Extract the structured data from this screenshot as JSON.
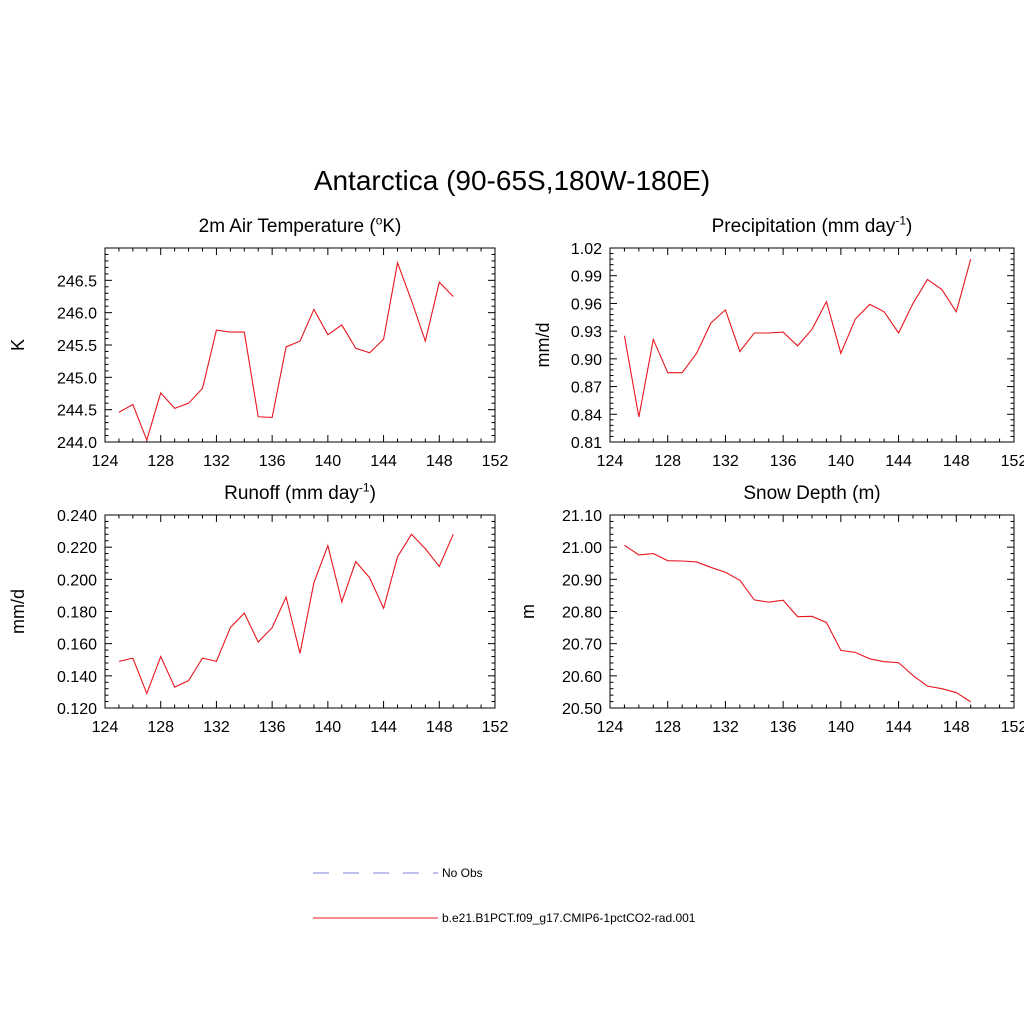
{
  "figure": {
    "title": "Antarctica (90-65S,180W-180E)",
    "line_color": "#e8161e",
    "obs_color": "#9a9ae6"
  },
  "panels": {
    "temp": {
      "title_main": "2m Air Temperature (",
      "title_sup": "o",
      "title_tail": "K)",
      "ylabel": "K"
    },
    "precip": {
      "title_main": "Precipitation (mm day",
      "title_sup": "-1",
      "title_tail": ")",
      "ylabel": "mm/d"
    },
    "runoff": {
      "title_main": "Runoff (mm day",
      "title_sup": "-1",
      "title_tail": ")",
      "ylabel": "mm/d"
    },
    "snow": {
      "title_main": "Snow Depth (m)",
      "title_sup": "",
      "title_tail": "",
      "ylabel": "m"
    }
  },
  "legend": {
    "obs_label": "No Obs",
    "model_label": "b.e21.B1PCT.f09_g17.CMIP6-1pctCO2-rad.001"
  },
  "chart_data": [
    {
      "id": "temp",
      "type": "line",
      "title": "2m Air Temperature (oK)",
      "ylabel": "K",
      "xlim": [
        124,
        152
      ],
      "ylim": [
        244.0,
        247.0
      ],
      "xticks": [
        124,
        128,
        132,
        136,
        140,
        144,
        148,
        152
      ],
      "yticks": [
        244.0,
        244.5,
        245.0,
        245.5,
        246.0,
        246.5
      ],
      "ytick_decimals": 1,
      "x": [
        125,
        126,
        127,
        128,
        129,
        130,
        131,
        132,
        133,
        134,
        135,
        136,
        137,
        138,
        139,
        140,
        141,
        142,
        143,
        144,
        145,
        146,
        147,
        148,
        149
      ],
      "series": [
        {
          "name": "b.e21.B1PCT.f09_g17.CMIP6-1pctCO2-rad.001",
          "values": [
            244.46,
            244.58,
            244.03,
            244.76,
            244.52,
            244.6,
            244.83,
            245.73,
            245.7,
            245.7,
            244.39,
            244.38,
            245.47,
            245.56,
            246.05,
            245.66,
            245.81,
            245.45,
            245.38,
            245.59,
            246.77,
            246.19,
            245.56,
            246.47,
            246.25
          ]
        }
      ]
    },
    {
      "id": "precip",
      "type": "line",
      "title": "Precipitation (mm day-1)",
      "ylabel": "mm/d",
      "xlim": [
        124,
        152
      ],
      "ylim": [
        0.81,
        1.02
      ],
      "xticks": [
        124,
        128,
        132,
        136,
        140,
        144,
        148,
        152
      ],
      "yticks": [
        0.81,
        0.84,
        0.87,
        0.9,
        0.93,
        0.96,
        0.99,
        1.02
      ],
      "ytick_decimals": 2,
      "x": [
        125,
        126,
        127,
        128,
        129,
        130,
        131,
        132,
        133,
        134,
        135,
        136,
        137,
        138,
        139,
        140,
        141,
        142,
        143,
        144,
        145,
        146,
        147,
        148,
        149
      ],
      "series": [
        {
          "name": "b.e21.B1PCT.f09_g17.CMIP6-1pctCO2-rad.001",
          "values": [
            0.925,
            0.837,
            0.921,
            0.885,
            0.885,
            0.906,
            0.939,
            0.953,
            0.908,
            0.928,
            0.928,
            0.929,
            0.914,
            0.932,
            0.962,
            0.906,
            0.943,
            0.959,
            0.951,
            0.928,
            0.96,
            0.986,
            0.975,
            0.951,
            1.008
          ]
        }
      ]
    },
    {
      "id": "runoff",
      "type": "line",
      "title": "Runoff (mm day-1)",
      "ylabel": "mm/d",
      "xlim": [
        124,
        152
      ],
      "ylim": [
        0.12,
        0.24
      ],
      "xticks": [
        124,
        128,
        132,
        136,
        140,
        144,
        148,
        152
      ],
      "yticks": [
        0.12,
        0.14,
        0.16,
        0.18,
        0.2,
        0.22,
        0.24
      ],
      "ytick_decimals": 3,
      "x": [
        125,
        126,
        127,
        128,
        129,
        130,
        131,
        132,
        133,
        134,
        135,
        136,
        137,
        138,
        139,
        140,
        141,
        142,
        143,
        144,
        145,
        146,
        147,
        148,
        149
      ],
      "series": [
        {
          "name": "b.e21.B1PCT.f09_g17.CMIP6-1pctCO2-rad.001",
          "values": [
            0.149,
            0.151,
            0.129,
            0.152,
            0.133,
            0.137,
            0.151,
            0.149,
            0.17,
            0.179,
            0.161,
            0.17,
            0.189,
            0.154,
            0.198,
            0.221,
            0.186,
            0.211,
            0.201,
            0.182,
            0.214,
            0.228,
            0.219,
            0.208,
            0.228
          ]
        }
      ]
    },
    {
      "id": "snow",
      "type": "line",
      "title": "Snow Depth (m)",
      "ylabel": "m",
      "xlim": [
        124,
        152
      ],
      "ylim": [
        20.5,
        21.1
      ],
      "xticks": [
        124,
        128,
        132,
        136,
        140,
        144,
        148,
        152
      ],
      "yticks": [
        20.5,
        20.6,
        20.7,
        20.8,
        20.9,
        21.0,
        21.1
      ],
      "ytick_decimals": 2,
      "x": [
        125,
        126,
        127,
        128,
        129,
        130,
        131,
        132,
        133,
        134,
        135,
        136,
        137,
        138,
        139,
        140,
        141,
        142,
        143,
        144,
        145,
        146,
        147,
        148,
        149
      ],
      "series": [
        {
          "name": "b.e21.B1PCT.f09_g17.CMIP6-1pctCO2-rad.001",
          "values": [
            21.006,
            20.976,
            20.98,
            20.958,
            20.957,
            20.954,
            20.937,
            20.922,
            20.897,
            20.836,
            20.829,
            20.835,
            20.784,
            20.785,
            20.766,
            20.679,
            20.673,
            20.653,
            20.644,
            20.641,
            20.601,
            20.568,
            20.56,
            20.548,
            20.519
          ]
        }
      ]
    }
  ]
}
